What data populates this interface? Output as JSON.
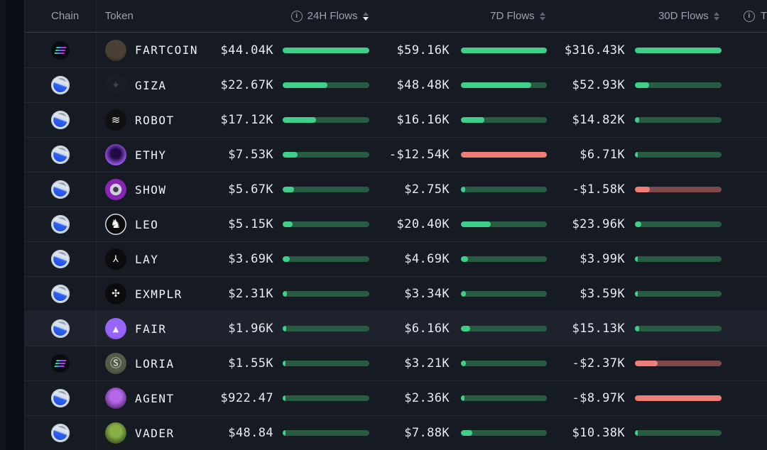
{
  "header": {
    "chain_label": "Chain",
    "token_label": "Token",
    "info_glyph": "i",
    "cols": [
      {
        "label": "24H Flows",
        "has_info": true,
        "active_sort": "down"
      },
      {
        "label": "7D Flows",
        "has_info": false,
        "active_sort": ""
      },
      {
        "label": "30D Flows",
        "has_info": false,
        "active_sort": ""
      }
    ],
    "partial_right_label": "T"
  },
  "colors": {
    "background": "#151a23",
    "left_rail": "#0a0d13",
    "row_highlight": "#1d222c",
    "positive_fill": "#40cf8b",
    "positive_track": "#275c42",
    "negative_fill": "#ef7e79",
    "negative_track": "#7d494b",
    "header_text": "#9aa2af",
    "value_text": "#e8ebf1"
  },
  "rows": [
    {
      "token": "FARTCOIN",
      "chain": "solana",
      "icon": {
        "kind": "glyph",
        "c1": "#4a4036",
        "c2": "#26211c",
        "glyph": "",
        "fg": "#5a5044",
        "glyph_size": 9
      },
      "h24": {
        "value": "$44.04K",
        "pct": 100
      },
      "d7": {
        "value": "$59.16K",
        "pct": 100
      },
      "d30": {
        "value": "$316.43K",
        "pct": 100
      }
    },
    {
      "token": "GIZA",
      "chain": "base",
      "icon": {
        "kind": "glyph",
        "c1": "#1a1d23",
        "c2": "#101216",
        "glyph": "✦",
        "fg": "#394150",
        "glyph_size": 15
      },
      "h24": {
        "value": "$22.67K",
        "pct": 51.5
      },
      "d7": {
        "value": "$48.48K",
        "pct": 82
      },
      "d30": {
        "value": "$52.93K",
        "pct": 16.7
      }
    },
    {
      "token": "ROBOT",
      "chain": "base",
      "icon": {
        "kind": "glyph",
        "c1": "#101013",
        "c2": "#07080a",
        "glyph": "≋",
        "fg": "#f2f4f7",
        "glyph_size": 15
      },
      "h24": {
        "value": "$17.12K",
        "pct": 38.9
      },
      "d7": {
        "value": "$16.16K",
        "pct": 27.3
      },
      "d30": {
        "value": "$14.82K",
        "pct": 4.7
      }
    },
    {
      "token": "ETHY",
      "chain": "base",
      "icon": {
        "kind": "orb",
        "c1": "#a05af0",
        "c2": "#220a44",
        "glyph": "",
        "fg": "",
        "glyph_size": 12
      },
      "h24": {
        "value": "$7.53K",
        "pct": 17.1
      },
      "d7": {
        "value": "-$12.54K",
        "pct": -100
      },
      "d30": {
        "value": "$6.71K",
        "pct": 2.1
      }
    },
    {
      "token": "SHOW",
      "chain": "base",
      "icon": {
        "kind": "eye",
        "c1": "#8a24b4",
        "c2": "#cdd2dc",
        "glyph": "",
        "fg": "",
        "glyph_size": 12
      },
      "h24": {
        "value": "$5.67K",
        "pct": 12.9
      },
      "d7": {
        "value": "$2.75K",
        "pct": 4.6
      },
      "d30": {
        "value": "-$1.58K",
        "pct": -17.6
      }
    },
    {
      "token": "LEO",
      "chain": "base",
      "icon": {
        "kind": "glyph",
        "c1": "#0c0c0f",
        "c2": "#060608",
        "glyph": "♞",
        "fg": "#ffffff",
        "glyph_size": 17,
        "ring": true
      },
      "h24": {
        "value": "$5.15K",
        "pct": 11.7
      },
      "d7": {
        "value": "$20.40K",
        "pct": 34.5
      },
      "d30": {
        "value": "$23.96K",
        "pct": 7.6
      }
    },
    {
      "token": "LAY",
      "chain": "base",
      "icon": {
        "kind": "glyph",
        "c1": "#0c0c0f",
        "c2": "#060608",
        "glyph": "⅄",
        "fg": "#ffffff",
        "glyph_size": 13
      },
      "h24": {
        "value": "$3.69K",
        "pct": 8.4
      },
      "d7": {
        "value": "$4.69K",
        "pct": 7.9
      },
      "d30": {
        "value": "$3.99K",
        "pct": 1.3
      }
    },
    {
      "token": "EXMPLR",
      "chain": "base",
      "icon": {
        "kind": "glyph",
        "c1": "#0c0c0f",
        "c2": "#060608",
        "glyph": "✣",
        "fg": "#ffffff",
        "glyph_size": 14
      },
      "h24": {
        "value": "$2.31K",
        "pct": 5.2
      },
      "d7": {
        "value": "$3.34K",
        "pct": 5.6
      },
      "d30": {
        "value": "$3.59K",
        "pct": 1.1
      }
    },
    {
      "token": "FAIR",
      "chain": "base",
      "highlighted": true,
      "icon": {
        "kind": "glyph",
        "c1": "#9765f7",
        "c2": "#7c4ae0",
        "glyph": "▲",
        "fg": "#f4effc",
        "glyph_size": 11
      },
      "h24": {
        "value": "$1.96K",
        "pct": 4.5
      },
      "d7": {
        "value": "$6.16K",
        "pct": 10.4
      },
      "d30": {
        "value": "$15.13K",
        "pct": 4.8
      }
    },
    {
      "token": "LORIA",
      "chain": "solana",
      "icon": {
        "kind": "glyph",
        "c1": "#535c48",
        "c2": "#39412f",
        "glyph": "Ⓢ",
        "fg": "#eef3e6",
        "glyph_size": 16
      },
      "h24": {
        "value": "$1.55K",
        "pct": 3.5
      },
      "d7": {
        "value": "$3.21K",
        "pct": 5.4
      },
      "d30": {
        "value": "-$2.37K",
        "pct": -26.4
      }
    },
    {
      "token": "AGENT",
      "chain": "base",
      "icon": {
        "kind": "portrait",
        "c1": "#b568e8",
        "c2": "#351048",
        "glyph": "",
        "fg": "",
        "glyph_size": 12
      },
      "h24": {
        "value": "$922.47",
        "pct": 2.1
      },
      "d7": {
        "value": "$2.36K",
        "pct": 4.0
      },
      "d30": {
        "value": "-$8.97K",
        "pct": -100
      }
    },
    {
      "token": "VADER",
      "chain": "base",
      "icon": {
        "kind": "portrait",
        "c1": "#86b046",
        "c2": "#22300e",
        "glyph": "",
        "fg": "",
        "glyph_size": 12
      },
      "h24": {
        "value": "$48.84",
        "pct": 0.5
      },
      "d7": {
        "value": "$7.88K",
        "pct": 13.3
      },
      "d30": {
        "value": "$10.38K",
        "pct": 3.3
      }
    }
  ]
}
